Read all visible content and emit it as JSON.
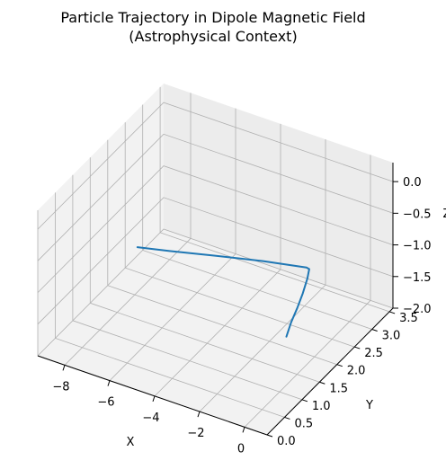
{
  "chart_data": {
    "type": "line",
    "projection": "3d",
    "title": [
      "Particle Trajectory in Dipole Magnetic Field",
      "(Astrophysical Context)"
    ],
    "xlabel": "X",
    "ylabel": "Y",
    "zlabel": "Z",
    "xlim": [
      -9.2,
      1.0
    ],
    "ylim": [
      0.0,
      3.6
    ],
    "zlim": [
      -2.0,
      0.3
    ],
    "xticks": [
      "−8",
      "−6",
      "−4",
      "−2",
      "0"
    ],
    "yticks": [
      "0.0",
      "0.5",
      "1.0",
      "1.5",
      "2.0",
      "2.5",
      "3.0",
      "3.5"
    ],
    "zticks": [
      "−2.0",
      "−1.5",
      "−1.0",
      "−0.5",
      "0.0"
    ],
    "grid": true,
    "series": [
      {
        "color": "#1f77b4",
        "points": [
          {
            "x": -0.55,
            "y": 1.55,
            "z": -1.5
          },
          {
            "x": -0.45,
            "y": 1.62,
            "z": -1.3
          },
          {
            "x": -0.3,
            "y": 1.7,
            "z": -1.1
          },
          {
            "x": -0.18,
            "y": 1.78,
            "z": -0.9
          },
          {
            "x": -0.1,
            "y": 1.86,
            "z": -0.7
          },
          {
            "x": -0.08,
            "y": 1.9,
            "z": -0.57
          },
          {
            "x": -0.2,
            "y": 1.9,
            "z": -0.56
          },
          {
            "x": -2.1,
            "y": 1.88,
            "z": -0.68
          },
          {
            "x": -4.2,
            "y": 1.86,
            "z": -0.84
          },
          {
            "x": -6.2,
            "y": 1.84,
            "z": -1.0
          },
          {
            "x": -7.6,
            "y": 1.82,
            "z": -1.1
          }
        ]
      }
    ]
  }
}
